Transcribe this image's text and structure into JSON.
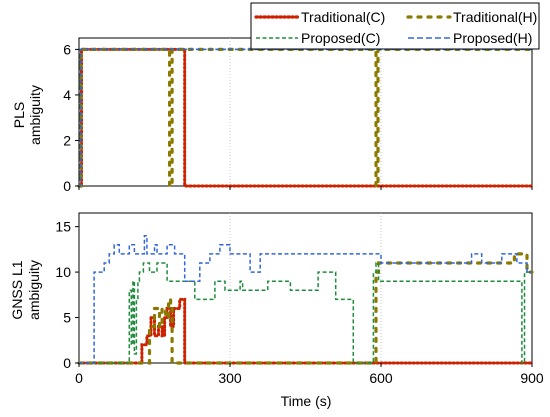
{
  "chart_data": [
    {
      "type": "line",
      "panel": "top",
      "ylabel": [
        "PLS",
        "ambiguity"
      ],
      "xlim": [
        0,
        900
      ],
      "ylim": [
        0,
        6.5
      ],
      "yticks": [
        0,
        2,
        4,
        6
      ],
      "ytick_labels": [
        "0",
        "2",
        "4",
        "6"
      ],
      "grid": "vertical dotted at x=300, 600",
      "series": [
        {
          "name": "Traditional(C)",
          "color": "#cc2200",
          "style": "dotted-thick",
          "x": [
            0,
            5,
            5,
            210,
            210,
            900
          ],
          "y": [
            0,
            0,
            6,
            6,
            0,
            0
          ]
        },
        {
          "name": "Traditional(H)",
          "color": "#8b7a00",
          "style": "dashed-thick",
          "x": [
            0,
            4,
            4,
            180,
            180,
            185,
            185,
            590,
            590,
            594,
            594,
            900
          ],
          "y": [
            0,
            0,
            6,
            6,
            0,
            0,
            6,
            6,
            0,
            0,
            6,
            6
          ]
        },
        {
          "name": "Proposed(C)",
          "color": "#1e8c3c",
          "style": "dashed",
          "x": [
            0,
            3,
            3,
            900
          ],
          "y": [
            0,
            0,
            6,
            6
          ]
        },
        {
          "name": "Proposed(H)",
          "color": "#3366dd",
          "style": "dashed",
          "x": [
            0,
            3,
            3,
            900
          ],
          "y": [
            0,
            0,
            6,
            6
          ]
        }
      ]
    },
    {
      "type": "line",
      "panel": "bottom",
      "ylabel": [
        "GNSS L1",
        "ambiguity"
      ],
      "xlabel": "Time (s)",
      "xlim": [
        0,
        900
      ],
      "ylim": [
        0,
        16.5
      ],
      "xticks": [
        0,
        300,
        600,
        900
      ],
      "xtick_labels": [
        "0",
        "300",
        "600",
        "900"
      ],
      "yticks": [
        0,
        5,
        10,
        15
      ],
      "ytick_labels": [
        "0",
        "5",
        "10",
        "15"
      ],
      "grid": "vertical dotted at x=300, 600",
      "series": [
        {
          "name": "Traditional(C)",
          "color": "#cc2200",
          "style": "dotted-thick",
          "x": [
            0,
            125,
            125,
            135,
            135,
            143,
            143,
            150,
            150,
            158,
            158,
            165,
            165,
            170,
            170,
            175,
            175,
            182,
            182,
            188,
            188,
            200,
            200,
            210,
            210,
            900
          ],
          "y": [
            0,
            0,
            2,
            2,
            3,
            3,
            5,
            5,
            3,
            3,
            4,
            4,
            3,
            3,
            5,
            5,
            6,
            6,
            4,
            4,
            6,
            6,
            7,
            7,
            0,
            0
          ]
        },
        {
          "name": "Traditional(H)",
          "color": "#8b7a00",
          "style": "dashed-thick",
          "x": [
            0,
            140,
            140,
            150,
            150,
            160,
            160,
            165,
            165,
            172,
            172,
            178,
            178,
            182,
            182,
            185,
            185,
            590,
            590,
            595,
            595,
            865,
            865,
            890,
            890,
            900
          ],
          "y": [
            0,
            0,
            4,
            4,
            6,
            6,
            4,
            4,
            6,
            6,
            5,
            5,
            7,
            7,
            6,
            6,
            0,
            0,
            10,
            10,
            11,
            11,
            12,
            12,
            10,
            10
          ]
        },
        {
          "name": "Proposed(C)",
          "color": "#1e8c3c",
          "style": "dashed",
          "x": [
            0,
            100,
            100,
            104,
            104,
            107,
            107,
            110,
            110,
            114,
            114,
            117,
            117,
            120,
            120,
            128,
            128,
            140,
            140,
            155,
            155,
            175,
            175,
            230,
            230,
            270,
            270,
            290,
            290,
            320,
            320,
            325,
            325,
            375,
            375,
            420,
            420,
            475,
            475,
            510,
            510,
            545,
            545,
            585,
            585,
            590,
            590,
            595,
            595,
            880,
            880,
            885,
            885,
            900
          ],
          "y": [
            0,
            0,
            8,
            8,
            2,
            2,
            9,
            9,
            1,
            1,
            7,
            7,
            9,
            9,
            10,
            10,
            11,
            11,
            10,
            10,
            11,
            11,
            9,
            9,
            7,
            7,
            9,
            9,
            8,
            8,
            9,
            9,
            8,
            8,
            9,
            9,
            8,
            8,
            10,
            10,
            7,
            7,
            0,
            0,
            10,
            10,
            11,
            11,
            9,
            9,
            0,
            0,
            10,
            10
          ]
        },
        {
          "name": "Proposed(H)",
          "color": "#3366dd",
          "style": "dashed",
          "x": [
            0,
            30,
            30,
            50,
            50,
            60,
            60,
            70,
            70,
            80,
            80,
            100,
            100,
            110,
            110,
            130,
            130,
            135,
            135,
            150,
            150,
            155,
            155,
            175,
            175,
            190,
            190,
            210,
            210,
            240,
            240,
            260,
            260,
            280,
            280,
            300,
            300,
            340,
            340,
            360,
            360,
            600,
            600,
            780,
            780,
            800,
            800,
            840,
            840,
            870,
            870,
            890,
            890,
            900
          ],
          "y": [
            0,
            0,
            10,
            10,
            11,
            11,
            12,
            12,
            13,
            13,
            12,
            12,
            13,
            13,
            12,
            12,
            14,
            14,
            12,
            12,
            13,
            13,
            12,
            12,
            13,
            13,
            12,
            12,
            9,
            9,
            11,
            11,
            12,
            12,
            13,
            13,
            12,
            12,
            10,
            10,
            12,
            12,
            11,
            11,
            12,
            12,
            11,
            11,
            12,
            12,
            11,
            11,
            10,
            10
          ]
        }
      ]
    }
  ],
  "legend": {
    "placement": "top-right",
    "items": [
      {
        "label": "Traditional(C)",
        "color": "#cc2200",
        "style": "dotted-thick"
      },
      {
        "label": "Traditional(H)",
        "color": "#8b7a00",
        "style": "dashed-thick"
      },
      {
        "label": "Proposed(C)",
        "color": "#1e8c3c",
        "style": "dashed"
      },
      {
        "label": "Proposed(H)",
        "color": "#3366dd",
        "style": "dashed"
      }
    ]
  }
}
